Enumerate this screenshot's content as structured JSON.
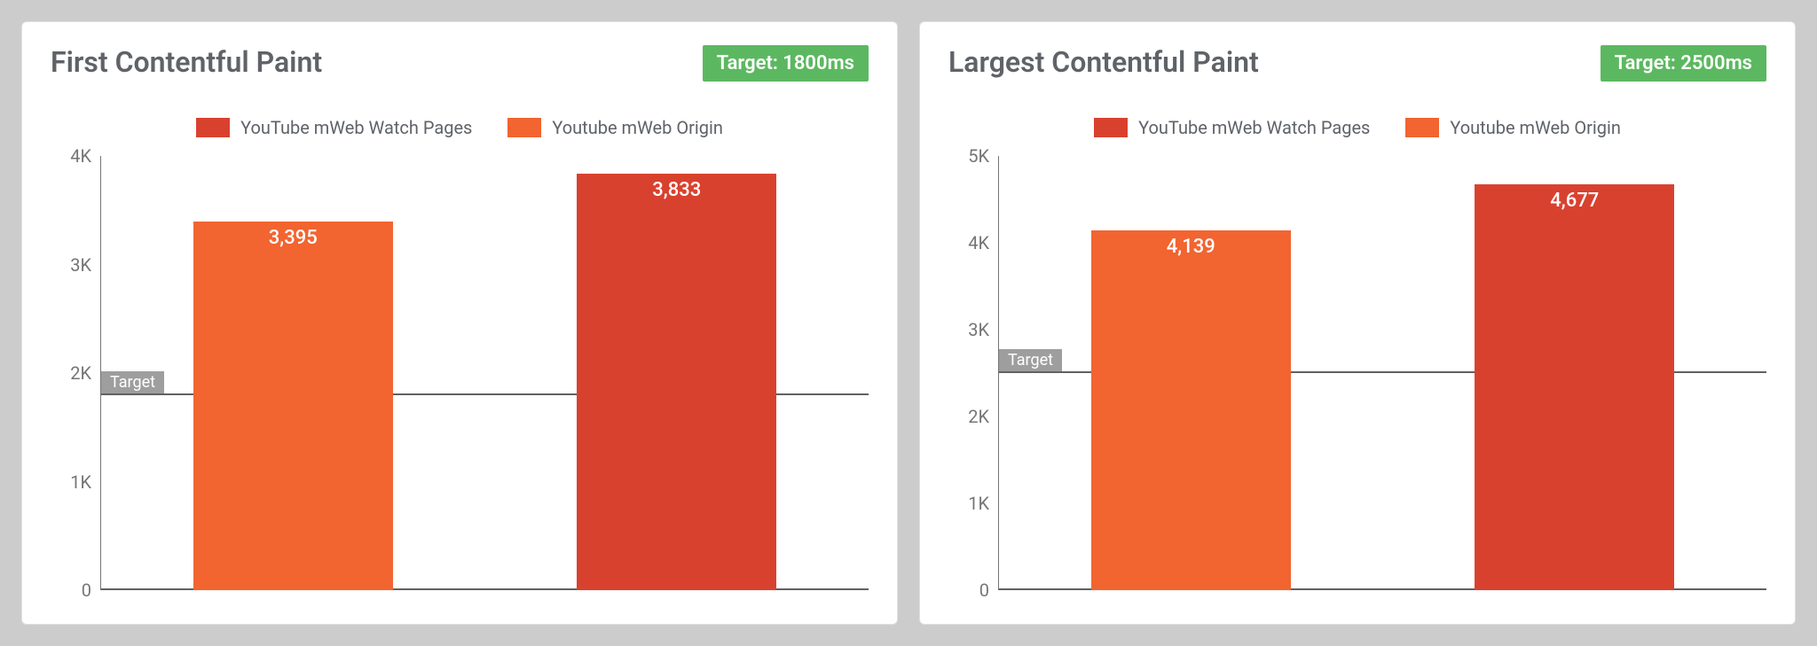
{
  "page": {
    "background_color": "#cccccc",
    "card_background": "#ffffff",
    "card_border_color": "#e0e0e0"
  },
  "charts": [
    {
      "title": "First Contentful Paint",
      "target_badge": "Target: 1800ms",
      "target_badge_bg": "#5cb860",
      "target_badge_color": "#ffffff",
      "type": "bar",
      "ymax": 4000,
      "ytick_step": 1000,
      "ytick_labels": [
        "0",
        "1K",
        "2K",
        "3K",
        "4K"
      ],
      "axis_text_color": "#757575",
      "title_color": "#5f6368",
      "title_fontsize": 32,
      "label_fontsize": 20,
      "value_fontsize": 22,
      "target_value": 1800,
      "target_label": "Target",
      "target_line_color": "#616161",
      "target_label_bg": "#9e9e9e",
      "target_label_color": "#ffffff",
      "baseline_color": "#616161",
      "bar_width_pct": 26,
      "legend": [
        {
          "label": "YouTube mWeb Watch Pages",
          "color": "#d9412f"
        },
        {
          "label": "Youtube mWeb Origin",
          "color": "#f26430"
        }
      ],
      "bars": [
        {
          "value": 3395,
          "display": "3,395",
          "color": "#f26430"
        },
        {
          "value": 3833,
          "display": "3,833",
          "color": "#d9412f"
        }
      ]
    },
    {
      "title": "Largest Contentful Paint",
      "target_badge": "Target: 2500ms",
      "target_badge_bg": "#5cb860",
      "target_badge_color": "#ffffff",
      "type": "bar",
      "ymax": 5000,
      "ytick_step": 1000,
      "ytick_labels": [
        "0",
        "1K",
        "2K",
        "3K",
        "4K",
        "5K"
      ],
      "axis_text_color": "#757575",
      "title_color": "#5f6368",
      "title_fontsize": 32,
      "label_fontsize": 20,
      "value_fontsize": 22,
      "target_value": 2500,
      "target_label": "Target",
      "target_line_color": "#616161",
      "target_label_bg": "#9e9e9e",
      "target_label_color": "#ffffff",
      "baseline_color": "#616161",
      "bar_width_pct": 26,
      "legend": [
        {
          "label": "YouTube mWeb Watch Pages",
          "color": "#d9412f"
        },
        {
          "label": "Youtube mWeb Origin",
          "color": "#f26430"
        }
      ],
      "bars": [
        {
          "value": 4139,
          "display": "4,139",
          "color": "#f26430"
        },
        {
          "value": 4677,
          "display": "4,677",
          "color": "#d9412f"
        }
      ]
    }
  ]
}
